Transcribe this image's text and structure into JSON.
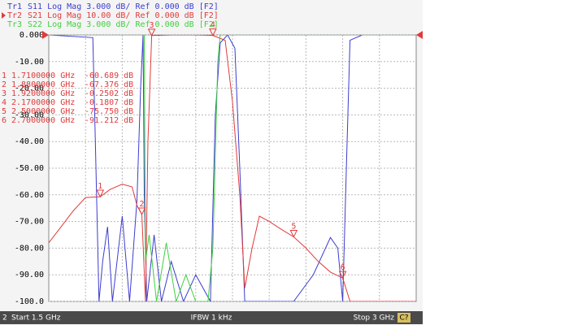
{
  "chart_data": {
    "type": "line",
    "xlim": [
      1.5,
      3
    ],
    "ylim": [
      -100,
      0
    ],
    "yticks": [
      {
        "value": 0,
        "label": "0.000"
      },
      {
        "value": -10,
        "label": "-10.00"
      },
      {
        "value": -20,
        "label": "-20.00"
      },
      {
        "value": -30,
        "label": "-30.00"
      },
      {
        "value": -40,
        "label": "-40.00"
      },
      {
        "value": -50,
        "label": "-50.00"
      },
      {
        "value": -60,
        "label": "-60.00"
      },
      {
        "value": -70,
        "label": "-70.00"
      },
      {
        "value": -80,
        "label": "-80.00"
      },
      {
        "value": -90,
        "label": "-90.00"
      },
      {
        "value": -100,
        "label": "-100.0"
      }
    ],
    "grid": true,
    "series": [
      {
        "name": "Tr1",
        "header": "S11 Log Mag 3.000 dB/ Ref 0.000 dB [F2]",
        "color": "#3c3cd0",
        "x": [
          1.5,
          1.68,
          1.69,
          1.705,
          1.72,
          1.74,
          1.76,
          1.8,
          1.83,
          1.86,
          1.875,
          1.885,
          1.89,
          1.9,
          1.93,
          1.96,
          2.0,
          2.05,
          2.1,
          2.16,
          2.18,
          2.2,
          2.23,
          2.26,
          2.28,
          2.3,
          2.5,
          2.58,
          2.65,
          2.68,
          2.7,
          2.715,
          2.73,
          2.78,
          3.0
        ],
        "values": [
          0,
          -1,
          -40,
          -100,
          -85,
          -72,
          -100,
          -68,
          -100,
          -62,
          -20,
          0,
          -60,
          -100,
          -75,
          -100,
          -85,
          -100,
          -90,
          -100,
          -30,
          -3,
          0,
          -5,
          -50,
          -100,
          -100,
          -90,
          -76,
          -80,
          -100,
          -50,
          -2,
          0,
          0
        ]
      },
      {
        "name": "Tr2",
        "header": "S21 Log Mag 10.00 dB/ Ref 0.000 dB [F2]",
        "color": "#e03a3a",
        "x": [
          1.5,
          1.55,
          1.6,
          1.65,
          1.71,
          1.75,
          1.8,
          1.84,
          1.86,
          1.88,
          1.895,
          1.905,
          1.92,
          2.0,
          2.1,
          2.17,
          2.22,
          2.25,
          2.28,
          2.3,
          2.33,
          2.36,
          2.4,
          2.45,
          2.5,
          2.55,
          2.6,
          2.65,
          2.7,
          2.73,
          2.8,
          3.0
        ],
        "values": [
          -78,
          -72,
          -66,
          -61,
          -60.689,
          -58,
          -56,
          -57,
          -64,
          -67.376,
          -100,
          -40,
          -0.2502,
          0,
          0,
          -0.1807,
          -2,
          -25,
          -60,
          -95,
          -80,
          -68,
          -70,
          -73,
          -75.75,
          -80,
          -85,
          -89,
          -91.212,
          -100,
          -100,
          -100
        ]
      },
      {
        "name": "Tr3",
        "header": "S22 Log Mag 3.000 dB/ Ref 0.000 dB [F2]",
        "color": "#3fcf3f",
        "x": [
          1.5,
          1.89,
          1.895,
          1.91,
          1.94,
          1.98,
          2.02,
          2.06,
          2.1,
          2.15,
          2.17,
          2.19,
          2.2,
          3.0
        ],
        "values": [
          0,
          0,
          -85,
          -75,
          -100,
          -78,
          -100,
          -90,
          -100,
          -100,
          -80,
          -10,
          0,
          0
        ]
      }
    ],
    "markers": [
      {
        "label": "1",
        "x": 1.71,
        "x_label": "1.7100000 GHz",
        "y": -60.689,
        "y_label": "-60.689 dB"
      },
      {
        "label": "2",
        "x": 1.88,
        "x_label": "1.8800000 GHz",
        "y": -67.376,
        "y_label": "-67.376 dB"
      },
      {
        "label": "3",
        "x": 1.92,
        "x_label": "1.9200000 GHz",
        "y": -0.2502,
        "y_label": "-0.2502 dB"
      },
      {
        "label": "4",
        "x": 2.17,
        "x_label": "2.1700000 GHz",
        "y": -0.1807,
        "y_label": "-0.1807 dB"
      },
      {
        "label": "5",
        "x": 2.5,
        "x_label": "2.5000000 GHz",
        "y": -75.75,
        "y_label": "-75.750 dB"
      },
      {
        "label": "6",
        "x": 2.7,
        "x_label": "2.7000000 GHz",
        "y": -91.212,
        "y_label": "-91.212 dB"
      }
    ],
    "status": {
      "start": "Start 1.5 GHz",
      "ifbw": "IFBW 1 kHz",
      "stop": "Stop 3 GHz",
      "channel": "C?",
      "window": "2"
    }
  }
}
